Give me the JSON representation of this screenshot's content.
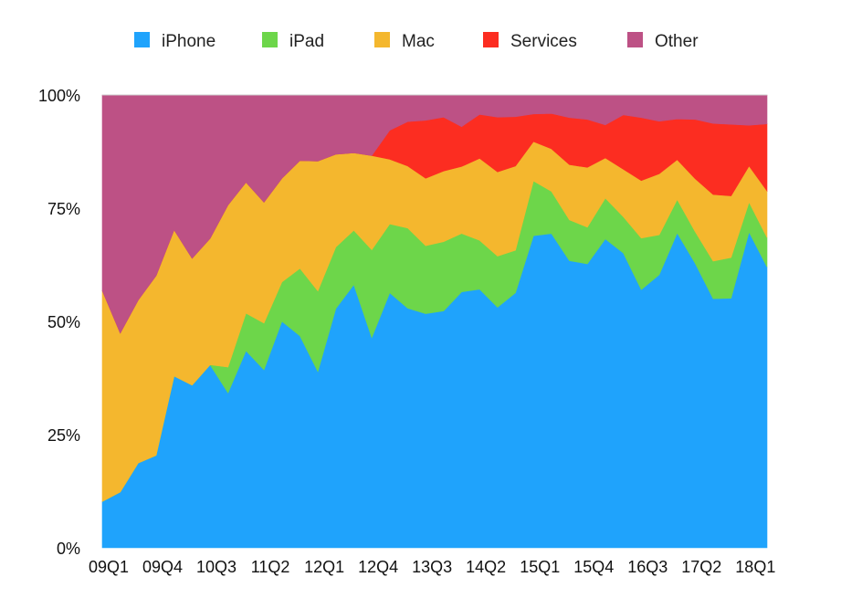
{
  "chart_data": {
    "type": "area",
    "stacked": true,
    "normalized": true,
    "title": "",
    "xlabel": "",
    "ylabel": "",
    "ylim": [
      0,
      100
    ],
    "yticks": [
      "0%",
      "25%",
      "50%",
      "75%",
      "100%"
    ],
    "xtick_labels": [
      "09Q1",
      "09Q4",
      "10Q3",
      "11Q2",
      "12Q1",
      "12Q4",
      "13Q3",
      "14Q2",
      "15Q1",
      "15Q4",
      "16Q3",
      "17Q2",
      "18Q1"
    ],
    "legend_position": "top",
    "grid": false,
    "categories": [
      "09Q1",
      "09Q2",
      "09Q3",
      "09Q4",
      "10Q1",
      "10Q2",
      "10Q3",
      "10Q4",
      "11Q1",
      "11Q2",
      "11Q3",
      "11Q4",
      "12Q1",
      "12Q2",
      "12Q3",
      "12Q4",
      "13Q1",
      "13Q2",
      "13Q3",
      "13Q4",
      "14Q1",
      "14Q2",
      "14Q3",
      "14Q4",
      "15Q1",
      "15Q2",
      "15Q3",
      "15Q4",
      "16Q1",
      "16Q2",
      "16Q3",
      "16Q4",
      "17Q1",
      "17Q2",
      "17Q3",
      "17Q4",
      "18Q1",
      "18Q2"
    ],
    "series": [
      {
        "name": "iPhone",
        "color": "#1fa3fc",
        "values": [
          10.2,
          12.3,
          18.7,
          20.4,
          37.9,
          35.9,
          40.4,
          34.2,
          43.5,
          39.3,
          50.0,
          46.8,
          38.9,
          52.8,
          58.1,
          46.4,
          56.3,
          52.9,
          51.7,
          52.3,
          56.5,
          57.1,
          53.1,
          56.3,
          68.9,
          69.4,
          63.4,
          62.7,
          68.2,
          65.1,
          57.0,
          60.3,
          69.5,
          62.8,
          55.0,
          55.1,
          69.7,
          62.0
        ]
      },
      {
        "name": "iPad",
        "color": "#6dd64a",
        "values": [
          0,
          0,
          0,
          0,
          0,
          0,
          0,
          5.7,
          8.3,
          10.3,
          8.7,
          14.9,
          17.8,
          13.6,
          12.0,
          19.4,
          15.2,
          17.7,
          15.0,
          15.3,
          12.9,
          10.8,
          11.3,
          9.4,
          12.1,
          9.3,
          9.0,
          8.1,
          9.0,
          8.0,
          11.4,
          8.8,
          7.4,
          7.0,
          8.3,
          9.0,
          6.6,
          6.5
        ]
      },
      {
        "name": "Mac",
        "color": "#f4b72e",
        "values": [
          46.6,
          35.1,
          36.0,
          39.7,
          32.3,
          28.0,
          27.9,
          35.8,
          28.9,
          26.7,
          22.9,
          23.8,
          28.7,
          20.5,
          17.1,
          20.8,
          14.3,
          13.7,
          14.9,
          15.6,
          14.8,
          18.1,
          18.6,
          18.6,
          8.7,
          9.4,
          12.2,
          13.2,
          8.9,
          10.5,
          12.7,
          13.5,
          8.8,
          11.7,
          14.7,
          13.6,
          8.0,
          10.3
        ]
      },
      {
        "name": "Services",
        "color": "#fc2d21",
        "values": [
          0,
          0,
          0,
          0,
          0,
          0,
          0,
          0,
          0,
          0,
          0,
          0,
          0,
          0,
          0,
          0,
          6.4,
          9.8,
          12.8,
          11.9,
          8.8,
          9.7,
          12.1,
          10.9,
          6.1,
          7.8,
          10.4,
          10.6,
          7.3,
          12.0,
          13.9,
          11.6,
          9.0,
          13.1,
          15.7,
          15.8,
          9.0,
          14.8
        ]
      },
      {
        "name": "Other",
        "color": "#bd5185",
        "values": [
          43.2,
          52.6,
          45.3,
          39.9,
          29.8,
          36.1,
          31.7,
          24.3,
          19.3,
          23.7,
          18.4,
          14.5,
          14.6,
          13.1,
          12.8,
          13.4,
          7.8,
          5.9,
          5.6,
          4.9,
          7.0,
          4.3,
          4.9,
          4.8,
          4.2,
          4.1,
          5.0,
          5.4,
          6.6,
          4.4,
          5.0,
          5.8,
          5.3,
          5.4,
          6.3,
          6.5,
          6.7,
          6.4
        ]
      }
    ]
  }
}
